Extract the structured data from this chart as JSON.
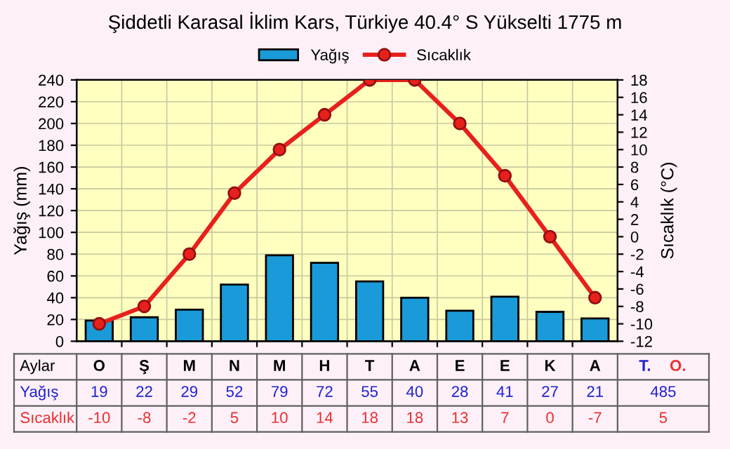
{
  "chart_data": {
    "type": "bar",
    "title": "Şiddetli Karasal İklim Kars, Türkiye 40.4° S Yükselti 1775 m",
    "xlabel": "Aylar",
    "ylabel": "Yağış (mm)",
    "y2label": "Sıcaklık (°C)",
    "categories": [
      "O",
      "Ş",
      "M",
      "N",
      "M",
      "H",
      "T",
      "A",
      "E",
      "E",
      "K",
      "A"
    ],
    "series": [
      {
        "name": "Yağış",
        "color": "#1a9ad8",
        "values": [
          19,
          22,
          29,
          52,
          79,
          72,
          55,
          40,
          28,
          41,
          27,
          21
        ]
      },
      {
        "name": "Sıcaklık",
        "type": "line",
        "axis": "y2",
        "color": "#e8201c",
        "marker": "circle",
        "line_style": "solid",
        "values": [
          -10,
          -8,
          -2,
          5,
          10,
          14,
          18,
          18,
          13,
          7,
          0,
          -7
        ]
      }
    ],
    "ylim": [
      0,
      240
    ],
    "yticks": [
      0,
      20,
      40,
      60,
      80,
      100,
      120,
      140,
      160,
      180,
      200,
      220,
      240
    ],
    "y2lim": [
      -12,
      18
    ],
    "y2ticks": [
      -12,
      -10,
      -8,
      -6,
      -4,
      -2,
      0,
      2,
      4,
      6,
      8,
      10,
      12,
      14,
      16,
      18
    ],
    "grid": true,
    "legend": "top",
    "data_labels": true,
    "annotations": [
      "T.",
      "O.",
      "485",
      "5"
    ]
  }
}
